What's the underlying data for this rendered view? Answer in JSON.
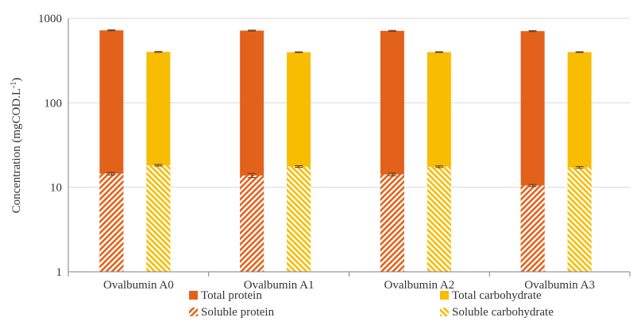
{
  "chart_data": {
    "type": "bar",
    "stacked": "overlay",
    "categories": [
      "Ovalbumin A0",
      "Ovalbumin A1",
      "Ovalbumin A2",
      "Ovalbumin A3"
    ],
    "ylabel_main": "Concentration (mgCOD.L",
    "ylabel_sup": "-1",
    "ylabel_tail": ")",
    "yscale": "log",
    "ylim": [
      1,
      1000
    ],
    "yticks": [
      {
        "value": 1,
        "label": "1"
      },
      {
        "value": 10,
        "label": "10"
      },
      {
        "value": 100,
        "label": "100"
      },
      {
        "value": 1000,
        "label": "1000"
      }
    ],
    "grid": true,
    "legend_position": "bottom",
    "series": [
      {
        "name": "Total protein",
        "group": "protein",
        "style": "solid",
        "color": "#E2621B",
        "values": [
          720,
          715,
          710,
          705
        ],
        "errors": [
          10,
          9,
          9,
          9
        ]
      },
      {
        "name": "Soluble protein",
        "group": "protein",
        "style": "hatched",
        "color": "#E2621B",
        "values": [
          14.5,
          13.8,
          14.2,
          10.5
        ],
        "errors": [
          0.5,
          0.8,
          0.5,
          0.3
        ]
      },
      {
        "name": "Total carbohydrate",
        "group": "carbohydrate",
        "style": "solid",
        "color": "#F8BC00",
        "values": [
          400,
          397,
          398,
          398
        ],
        "errors": [
          5,
          4,
          4,
          4
        ]
      },
      {
        "name": "Soluble carbohydrate",
        "group": "carbohydrate",
        "style": "hatched",
        "color": "#F8BC00",
        "values": [
          18.2,
          17.6,
          17.5,
          17.2
        ],
        "errors": [
          0.4,
          0.4,
          0.4,
          0.4
        ]
      }
    ],
    "legend": [
      {
        "label": "Total protein",
        "color": "#E2621B",
        "style": "solid"
      },
      {
        "label": "Total carbohydrate",
        "color": "#F8BC00",
        "style": "solid"
      },
      {
        "label": "Soluble protein",
        "color": "#E2621B",
        "style": "hatched"
      },
      {
        "label": "Soluble carbohydrate",
        "color": "#F8BC00",
        "style": "hatched"
      }
    ]
  }
}
